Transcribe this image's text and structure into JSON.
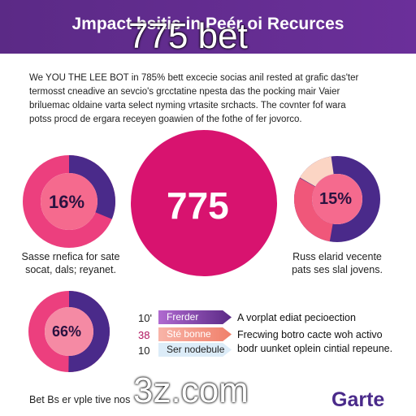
{
  "header": {
    "title": "Jmpact bsitis in Peér oi Recurces"
  },
  "watermarks": [
    "775 bet",
    "3z.com"
  ],
  "intro": [
    "We YOU THE LEE BOT in 785% bett excecie socias anil rested at grafic das'ter",
    "termosst cneadive an sevcio's grcctatine npesta das the pocking mair Vaier",
    "briluemac oldaine varta select nyming vrtasite srchacts.  The covnter fof wara",
    "potss procd de ergara receyen goawien of the fothe of fer jovorco."
  ],
  "donuts": [
    {
      "label": "16%",
      "caption": [
        "Sasse rnefica for sate",
        "socat, dals; reyanet."
      ]
    },
    {
      "label": "775"
    },
    {
      "label": "15%",
      "caption": [
        "Russ elarid vecente",
        "pats ses slal jovens."
      ]
    },
    {
      "label": "66%"
    }
  ],
  "list": [
    {
      "number": "10'",
      "tag": "Frerder",
      "text": "A vorplat ediat pecioection"
    },
    {
      "number": "38",
      "tag": "Sté bonne",
      "text": "Frecwing botro cacte woh activo"
    },
    {
      "number": "10",
      "tag": "Ser nodebule",
      "text": "bodr uunket oplein cintial repeune."
    }
  ],
  "footer": {
    "text": "Bet Bs er vple tive nos",
    "logo": "Garte"
  }
}
